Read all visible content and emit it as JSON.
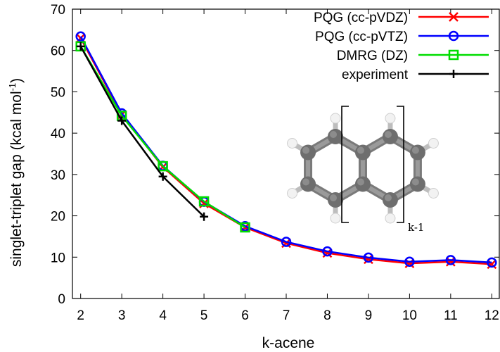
{
  "chart_data": {
    "type": "line",
    "xlabel": "k-acene",
    "ylabel_main": "singlet-triplet gap (kcal mol",
    "ylabel_sup": "-1",
    "ylabel_close": ")",
    "x": [
      2,
      3,
      4,
      5,
      6,
      7,
      8,
      9,
      10,
      11,
      12
    ],
    "xlim": [
      1.8,
      12.2
    ],
    "ylim": [
      0,
      70
    ],
    "xticks": [
      2,
      3,
      4,
      5,
      6,
      7,
      8,
      9,
      10,
      11,
      12
    ],
    "yticks": [
      0,
      10,
      20,
      30,
      40,
      50,
      60,
      70
    ],
    "grid": false,
    "legend_position": "top-right",
    "series": [
      {
        "name": "PQG (cc-pVDZ)",
        "color": "#ff0000",
        "marker": "x",
        "x": [
          2,
          3,
          4,
          5,
          6,
          7,
          8,
          9,
          10,
          11,
          12
        ],
        "values": [
          63.0,
          44.5,
          31.8,
          23.0,
          17.2,
          13.4,
          11.0,
          9.5,
          8.5,
          8.9,
          8.3
        ]
      },
      {
        "name": "PQG (cc-pVTZ)",
        "color": "#0000ff",
        "marker": "circle",
        "x": [
          2,
          3,
          4,
          5,
          6,
          7,
          8,
          9,
          10,
          11,
          12
        ],
        "values": [
          63.4,
          44.8,
          32.1,
          23.4,
          17.5,
          13.7,
          11.4,
          9.9,
          8.9,
          9.3,
          8.7
        ]
      },
      {
        "name": "DMRG (DZ)",
        "color": "#00dd00",
        "marker": "square",
        "x": [
          2,
          3,
          4,
          5,
          6
        ],
        "values": [
          61.0,
          44.2,
          32.0,
          23.5,
          17.2
        ]
      },
      {
        "name": "experiment",
        "color": "#000000",
        "marker": "plus",
        "x": [
          2,
          3,
          4,
          5
        ],
        "values": [
          61.0,
          43.0,
          29.5,
          19.8
        ]
      }
    ],
    "inset": {
      "subscript_label": "k-1",
      "molecule": "acene"
    }
  }
}
